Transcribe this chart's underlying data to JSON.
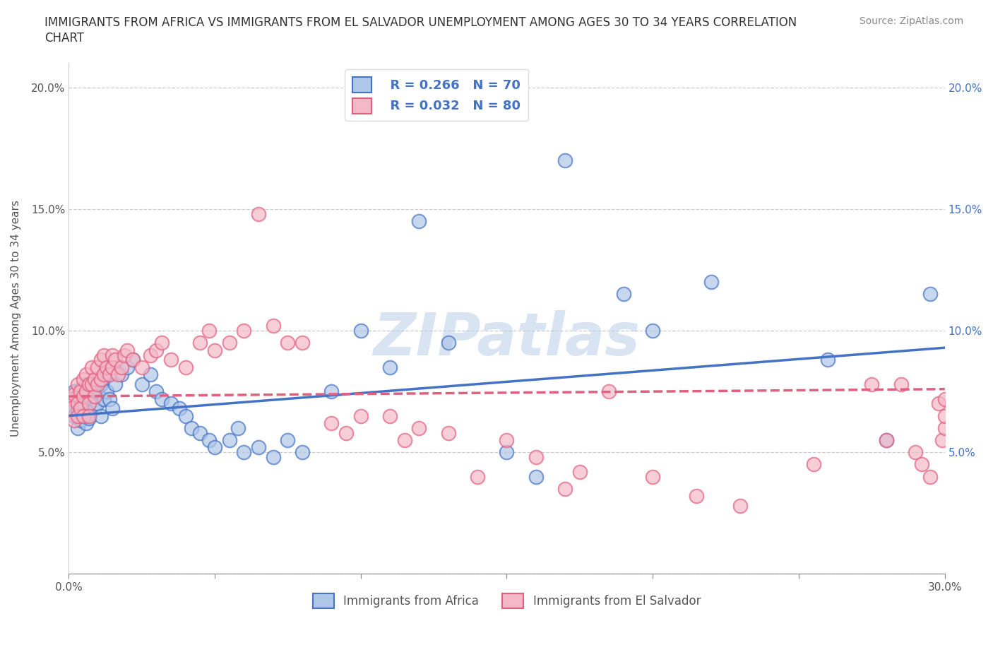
{
  "title_line1": "IMMIGRANTS FROM AFRICA VS IMMIGRANTS FROM EL SALVADOR UNEMPLOYMENT AMONG AGES 30 TO 34 YEARS CORRELATION",
  "title_line2": "CHART",
  "source": "Source: ZipAtlas.com",
  "ylabel": "Unemployment Among Ages 30 to 34 years",
  "xlim": [
    0.0,
    0.3
  ],
  "ylim": [
    0.0,
    0.21
  ],
  "xtick_vals": [
    0.0,
    0.05,
    0.1,
    0.15,
    0.2,
    0.25,
    0.3
  ],
  "ytick_vals": [
    0.0,
    0.05,
    0.1,
    0.15,
    0.2
  ],
  "ytick_labels": [
    "",
    "5.0%",
    "10.0%",
    "15.0%",
    "20.0%"
  ],
  "xtick_labels": [
    "0.0%",
    "",
    "",
    "",
    "",
    "",
    "30.0%"
  ],
  "grid_color": "#cccccc",
  "background_color": "#ffffff",
  "africa_color": "#aec6e8",
  "africa_edge_color": "#4472c4",
  "salvador_color": "#f4b8c8",
  "salvador_edge_color": "#e06080",
  "africa_line_color": "#4472c4",
  "salvador_line_color": "#e06080",
  "africa_R": 0.266,
  "africa_N": 70,
  "salvador_R": 0.032,
  "salvador_N": 80,
  "legend_label_africa": "Immigrants from Africa",
  "legend_label_salvador": "Immigrants from El Salvador",
  "watermark": "ZIPatlas",
  "africa_x": [
    0.001,
    0.001,
    0.002,
    0.002,
    0.002,
    0.003,
    0.003,
    0.003,
    0.003,
    0.004,
    0.004,
    0.004,
    0.005,
    0.005,
    0.005,
    0.006,
    0.006,
    0.006,
    0.007,
    0.007,
    0.007,
    0.008,
    0.008,
    0.009,
    0.009,
    0.01,
    0.01,
    0.011,
    0.011,
    0.012,
    0.012,
    0.013,
    0.014,
    0.015,
    0.016,
    0.018,
    0.02,
    0.022,
    0.025,
    0.028,
    0.03,
    0.032,
    0.035,
    0.038,
    0.04,
    0.042,
    0.045,
    0.048,
    0.05,
    0.055,
    0.058,
    0.06,
    0.065,
    0.07,
    0.075,
    0.08,
    0.09,
    0.1,
    0.11,
    0.12,
    0.13,
    0.15,
    0.16,
    0.17,
    0.19,
    0.2,
    0.22,
    0.26,
    0.28,
    0.295
  ],
  "africa_y": [
    0.07,
    0.068,
    0.072,
    0.065,
    0.075,
    0.068,
    0.073,
    0.06,
    0.067,
    0.07,
    0.063,
    0.076,
    0.072,
    0.068,
    0.065,
    0.074,
    0.078,
    0.062,
    0.07,
    0.066,
    0.064,
    0.075,
    0.072,
    0.068,
    0.074,
    0.07,
    0.075,
    0.078,
    0.065,
    0.072,
    0.08,
    0.075,
    0.072,
    0.068,
    0.078,
    0.082,
    0.085,
    0.088,
    0.078,
    0.082,
    0.075,
    0.072,
    0.07,
    0.068,
    0.065,
    0.06,
    0.058,
    0.055,
    0.052,
    0.055,
    0.06,
    0.05,
    0.052,
    0.048,
    0.055,
    0.05,
    0.075,
    0.1,
    0.085,
    0.145,
    0.095,
    0.05,
    0.04,
    0.17,
    0.115,
    0.1,
    0.12,
    0.088,
    0.055,
    0.115
  ],
  "salvador_x": [
    0.001,
    0.001,
    0.002,
    0.002,
    0.003,
    0.003,
    0.003,
    0.004,
    0.004,
    0.005,
    0.005,
    0.005,
    0.006,
    0.006,
    0.007,
    0.007,
    0.007,
    0.008,
    0.008,
    0.009,
    0.009,
    0.01,
    0.01,
    0.011,
    0.011,
    0.012,
    0.012,
    0.013,
    0.014,
    0.015,
    0.015,
    0.016,
    0.017,
    0.018,
    0.019,
    0.02,
    0.022,
    0.025,
    0.028,
    0.03,
    0.032,
    0.035,
    0.04,
    0.045,
    0.048,
    0.05,
    0.055,
    0.06,
    0.065,
    0.07,
    0.075,
    0.08,
    0.09,
    0.095,
    0.1,
    0.11,
    0.115,
    0.12,
    0.13,
    0.14,
    0.15,
    0.16,
    0.17,
    0.175,
    0.185,
    0.2,
    0.215,
    0.23,
    0.255,
    0.275,
    0.28,
    0.285,
    0.29,
    0.292,
    0.295,
    0.298,
    0.299,
    0.3,
    0.3,
    0.3
  ],
  "salvador_y": [
    0.072,
    0.068,
    0.074,
    0.063,
    0.078,
    0.07,
    0.065,
    0.075,
    0.068,
    0.08,
    0.073,
    0.065,
    0.082,
    0.075,
    0.078,
    0.07,
    0.065,
    0.085,
    0.078,
    0.08,
    0.073,
    0.085,
    0.078,
    0.088,
    0.08,
    0.082,
    0.09,
    0.085,
    0.082,
    0.09,
    0.085,
    0.088,
    0.082,
    0.085,
    0.09,
    0.092,
    0.088,
    0.085,
    0.09,
    0.092,
    0.095,
    0.088,
    0.085,
    0.095,
    0.1,
    0.092,
    0.095,
    0.1,
    0.148,
    0.102,
    0.095,
    0.095,
    0.062,
    0.058,
    0.065,
    0.065,
    0.055,
    0.06,
    0.058,
    0.04,
    0.055,
    0.048,
    0.035,
    0.042,
    0.075,
    0.04,
    0.032,
    0.028,
    0.045,
    0.078,
    0.055,
    0.078,
    0.05,
    0.045,
    0.04,
    0.07,
    0.055,
    0.06,
    0.065,
    0.072
  ]
}
